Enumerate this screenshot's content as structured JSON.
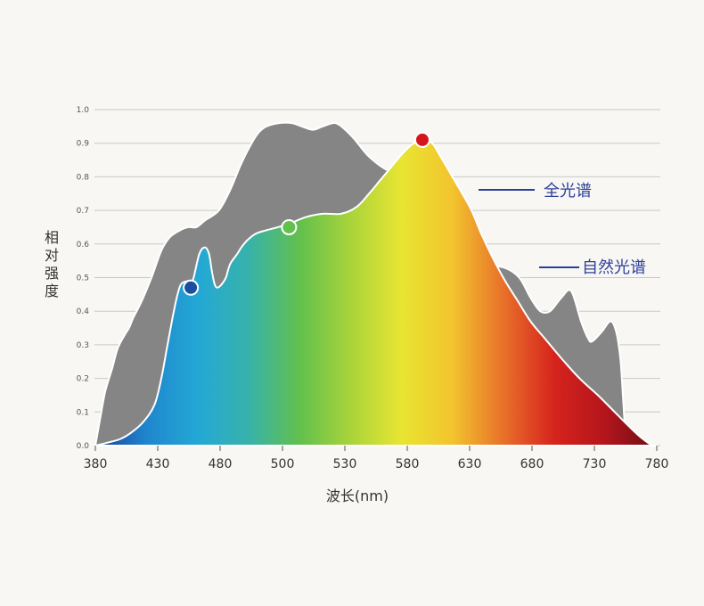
{
  "chart_data": {
    "type": "area",
    "xlabel": "波长(nm)",
    "ylabel": "相对强度",
    "xlim": [
      380,
      780
    ],
    "ylim": [
      0,
      1.0
    ],
    "x_ticks": [
      "380",
      "430",
      "480",
      "500",
      "530",
      "580",
      "630",
      "680",
      "730",
      "780"
    ],
    "y_ticks": [
      "0.0",
      "0.1",
      "0.2",
      "0.3",
      "0.4",
      "0.5",
      "0.6",
      "0.7",
      "0.8",
      "0.9",
      "1.0"
    ],
    "grid": true,
    "series": [
      {
        "name": "自然光谱",
        "color": "#858585",
        "x": [
          380,
          383,
          387,
          392,
          396,
          401,
          404,
          407,
          413,
          420,
          427,
          433,
          440,
          446,
          452,
          458,
          468,
          476,
          483,
          490,
          496,
          502,
          511,
          520,
          527,
          535,
          542,
          551,
          558,
          565,
          575,
          588,
          600,
          611,
          620,
          628,
          636,
          643,
          651,
          660,
          671,
          682,
          690,
          697,
          704,
          712,
          719,
          726,
          731,
          734,
          741,
          747,
          751,
          754,
          756,
          757,
          758,
          760
        ],
        "y": [
          0.0,
          0.07,
          0.16,
          0.23,
          0.29,
          0.33,
          0.35,
          0.38,
          0.43,
          0.5,
          0.58,
          0.62,
          0.64,
          0.65,
          0.65,
          0.67,
          0.7,
          0.76,
          0.83,
          0.89,
          0.93,
          0.95,
          0.96,
          0.96,
          0.95,
          0.94,
          0.95,
          0.96,
          0.94,
          0.91,
          0.86,
          0.82,
          0.81,
          0.8,
          0.76,
          0.7,
          0.65,
          0.58,
          0.51,
          0.53,
          0.53,
          0.5,
          0.44,
          0.4,
          0.4,
          0.44,
          0.46,
          0.37,
          0.32,
          0.31,
          0.34,
          0.37,
          0.34,
          0.26,
          0.14,
          0.07,
          0.02,
          0.0
        ]
      },
      {
        "name": "全光谱",
        "color": "spectrum",
        "x": [
          380,
          390,
          398,
          406,
          414,
          422,
          427,
          431,
          435,
          438,
          441,
          446,
          448,
          450,
          454,
          458,
          461,
          463,
          465,
          467,
          470,
          473,
          476,
          481,
          484,
          488,
          494,
          501,
          510,
          518,
          530,
          542,
          555,
          566,
          575,
          583,
          591,
          599,
          607,
          614,
          620,
          626,
          633,
          640,
          648,
          655,
          663,
          672,
          681,
          690,
          700,
          712,
          725,
          738,
          750,
          762,
          770,
          777,
          780
        ],
        "y": [
          0.0,
          0.01,
          0.02,
          0.04,
          0.07,
          0.12,
          0.2,
          0.29,
          0.38,
          0.44,
          0.48,
          0.49,
          0.49,
          0.5,
          0.57,
          0.59,
          0.57,
          0.52,
          0.48,
          0.47,
          0.48,
          0.5,
          0.54,
          0.57,
          0.59,
          0.61,
          0.63,
          0.64,
          0.65,
          0.66,
          0.68,
          0.69,
          0.69,
          0.71,
          0.75,
          0.79,
          0.83,
          0.87,
          0.9,
          0.91,
          0.9,
          0.86,
          0.81,
          0.76,
          0.7,
          0.63,
          0.56,
          0.49,
          0.43,
          0.37,
          0.32,
          0.26,
          0.2,
          0.15,
          0.1,
          0.05,
          0.02,
          0.0,
          0.0
        ]
      }
    ],
    "markers": [
      {
        "x": 448,
        "y": 0.47,
        "color": "#1a4f9e"
      },
      {
        "x": 518,
        "y": 0.65,
        "color": "#62c14c"
      },
      {
        "x": 613,
        "y": 0.91,
        "color": "#d4161c"
      }
    ],
    "spectrum_stops": [
      "#183f99",
      "#1f86cd",
      "#23a8d6",
      "#37b2aa",
      "#62c04d",
      "#a9d43a",
      "#e8e532",
      "#f3c42e",
      "#e8702a",
      "#d6231d",
      "#b3151c",
      "#6b0e12"
    ],
    "legend_placement": "right",
    "legend_color": "#2c3f9a"
  }
}
